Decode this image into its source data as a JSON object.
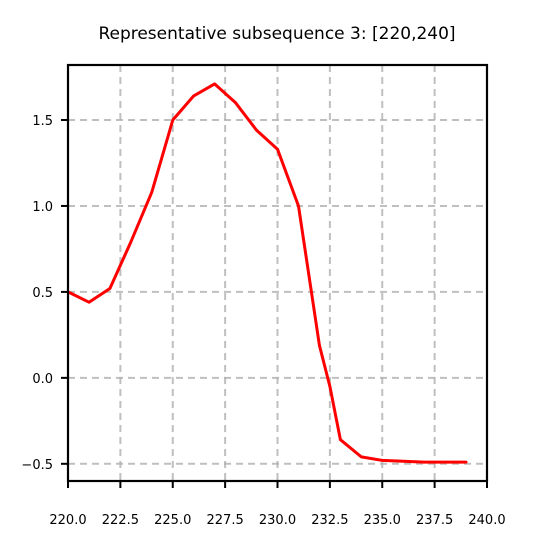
{
  "chart_data": {
    "type": "line",
    "title": "Representative subsequence 3: [220,240]",
    "xlabel": "",
    "ylabel": "",
    "xlim": [
      220.0,
      240.0
    ],
    "ylim": [
      -0.6,
      1.82
    ],
    "xticks": [
      220.0,
      222.5,
      225.0,
      227.5,
      230.0,
      232.5,
      235.0,
      237.5,
      240.0
    ],
    "xtick_labels": [
      "220.0",
      "222.5",
      "225.0",
      "227.5",
      "230.0",
      "232.5",
      "235.0",
      "237.5",
      "240.0"
    ],
    "yticks": [
      -0.5,
      0.0,
      0.5,
      1.0,
      1.5
    ],
    "ytick_labels": [
      "−0.5",
      "0.0",
      "0.5",
      "1.0",
      "1.5"
    ],
    "grid": true,
    "legend": "none",
    "series": [
      {
        "color": "#ff0000",
        "x": [
          220,
          221,
          222,
          223,
          224,
          225,
          226,
          227,
          228,
          229,
          230,
          231,
          232,
          232.5,
          233,
          234,
          235,
          236,
          237,
          238,
          239
        ],
        "y": [
          0.5,
          0.44,
          0.52,
          0.79,
          1.08,
          1.5,
          1.64,
          1.71,
          1.6,
          1.44,
          1.33,
          1.0,
          0.19,
          -0.05,
          -0.36,
          -0.46,
          -0.48,
          -0.485,
          -0.49,
          -0.49,
          -0.49
        ]
      }
    ]
  }
}
